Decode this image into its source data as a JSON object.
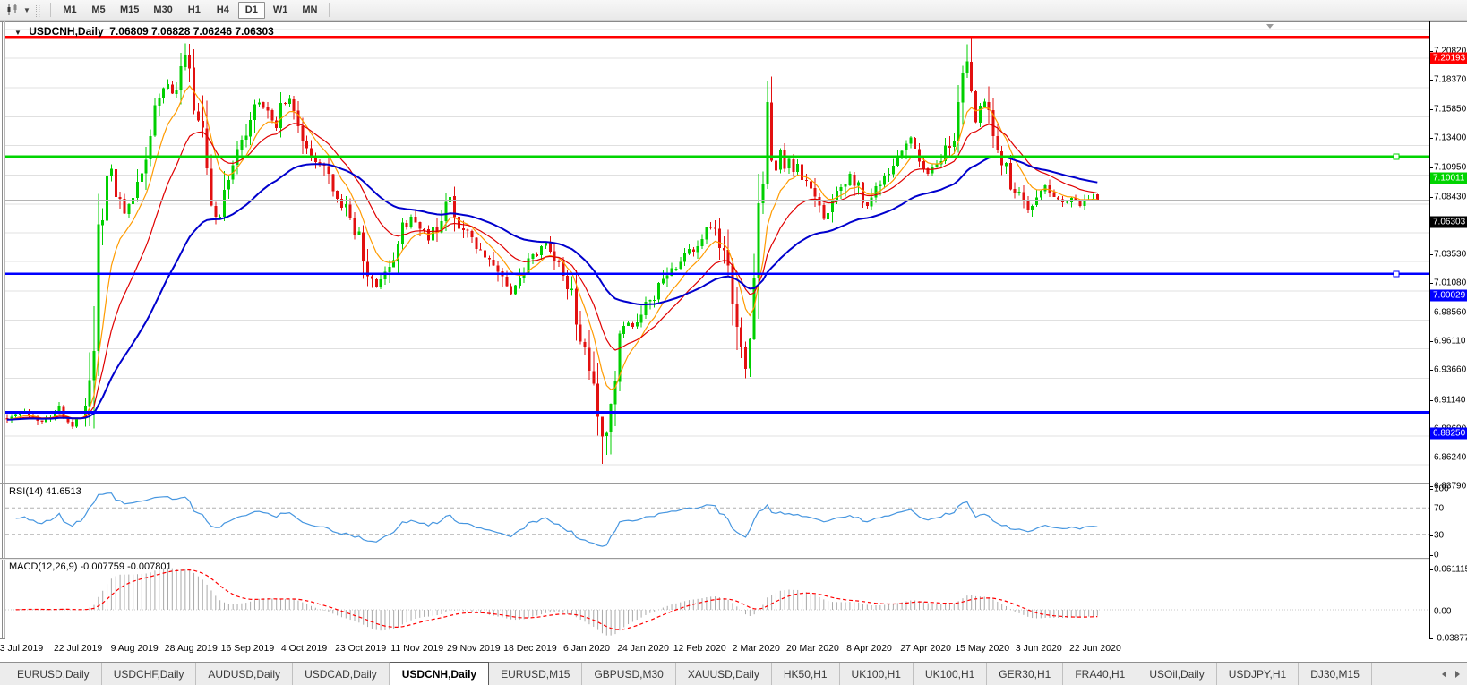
{
  "toolbar": {
    "chart_tool_icon": "candlestick-cursor",
    "dropdown_caret": "▼",
    "timeframes": [
      {
        "label": "M1",
        "active": false
      },
      {
        "label": "M5",
        "active": false
      },
      {
        "label": "M15",
        "active": false
      },
      {
        "label": "M30",
        "active": false
      },
      {
        "label": "H1",
        "active": false
      },
      {
        "label": "H4",
        "active": false
      },
      {
        "label": "D1",
        "active": true
      },
      {
        "label": "W1",
        "active": false
      },
      {
        "label": "MN",
        "active": false
      }
    ]
  },
  "chart": {
    "title_symbol": "USDCNH,Daily",
    "title_ohlc": "7.06809 7.06828 7.06246 7.06303",
    "collapse_caret": "▼",
    "price_axis_ticks": [
      "7.20820",
      "7.18370",
      "7.15850",
      "7.13400",
      "7.10950",
      "7.08430",
      "7.05980",
      "7.03530",
      "7.01080",
      "6.98560",
      "6.96110",
      "6.93660",
      "6.91140",
      "6.88690",
      "6.86240",
      "6.83790"
    ],
    "current_price": {
      "label": "7.06303",
      "price": 7.06303,
      "badge_color": "#000000",
      "line_color": "#b4b4b4"
    },
    "levels": [
      {
        "label": "7.20193",
        "price": 7.20193,
        "color": "#ff0000",
        "width": 2.5,
        "handle": false
      },
      {
        "label": "7.10011",
        "price": 7.10011,
        "color": "#00d400",
        "width": 3,
        "handle": true
      },
      {
        "label": "7.00029",
        "price": 7.00029,
        "color": "#0000ff",
        "width": 2.5,
        "handle": true
      },
      {
        "label": "6.88250",
        "price": 6.8825,
        "color": "#0000ff",
        "width": 3,
        "handle": false
      }
    ],
    "date_labels": [
      "3 Jul 2019",
      "22 Jul 2019",
      "9 Aug 2019",
      "28 Aug 2019",
      "16 Sep 2019",
      "4 Oct 2019",
      "23 Oct 2019",
      "11 Nov 2019",
      "29 Nov 2019",
      "18 Dec 2019",
      "6 Jan 2020",
      "24 Jan 2020",
      "12 Feb 2020",
      "2 Mar 2020",
      "20 Mar 2020",
      "8 Apr 2020",
      "27 Apr 2020",
      "15 May 2020",
      "3 Jun 2020",
      "22 Jun 2020"
    ]
  },
  "rsi": {
    "label": "RSI(14)",
    "value": "41.6513",
    "ticks": [
      {
        "label": "100",
        "v": 100
      },
      {
        "label": "70",
        "v": 70
      },
      {
        "label": "30",
        "v": 30
      },
      {
        "label": "0",
        "v": 0
      }
    ],
    "levels": [
      70,
      30
    ],
    "line_color": "#4696e0",
    "level_color": "#b0b0b0"
  },
  "macd": {
    "label": "MACD(12,26,9)",
    "values": "-0.007759 -0.007801",
    "ticks": [
      {
        "label": "0.061115",
        "v": 0.061115
      },
      {
        "label": "0.00",
        "v": 0
      },
      {
        "label": "-0.03877",
        "v": -0.03877
      }
    ],
    "histogram_color": "#a9a9a9",
    "signal_color": "#ff0000",
    "params": {
      "fast": 12,
      "slow": 26,
      "signal": 9
    }
  },
  "tabs": [
    {
      "label": "EURUSD,Daily",
      "active": false
    },
    {
      "label": "USDCHF,Daily",
      "active": false
    },
    {
      "label": "AUDUSD,Daily",
      "active": false
    },
    {
      "label": "USDCAD,Daily",
      "active": false
    },
    {
      "label": "USDCNH,Daily",
      "active": true
    },
    {
      "label": "EURUSD,M15",
      "active": false
    },
    {
      "label": "GBPUSD,M30",
      "active": false
    },
    {
      "label": "XAUUSD,Daily",
      "active": false
    },
    {
      "label": "HK50,H1",
      "active": false
    },
    {
      "label": "UK100,H1",
      "active": false
    },
    {
      "label": "UK100,H1",
      "active": false
    },
    {
      "label": "GER30,H1",
      "active": false
    },
    {
      "label": "FRA40,H1",
      "active": false
    },
    {
      "label": "USOil,Daily",
      "active": false
    },
    {
      "label": "USDJPY,H1",
      "active": false
    },
    {
      "label": "DJ30,M15",
      "active": false
    }
  ],
  "chart_data": {
    "type": "candlestick",
    "symbol": "USDCNH",
    "timeframe": "Daily",
    "open": 7.06809,
    "high": 7.06828,
    "low": 7.06246,
    "close": 7.06303,
    "ylim": [
      6.825,
      7.213
    ],
    "num_candles": 252,
    "up_color": "#00cf00",
    "down_color": "#e21010",
    "ma_fast_color": "#ff9b00",
    "ma_mid_color": "#e00000",
    "ma_slow_color": "#0000cd",
    "ma_periods": {
      "fast": 8,
      "mid": 18,
      "slow": 45
    },
    "grid_color": "#e0e0e0",
    "extremes": {
      "aug_high_idx": 41,
      "aug_high": 7.1962,
      "jan_low_idx": 137,
      "jan_low": 6.8385,
      "mar_high_idx": 175,
      "mar_high": 7.1648,
      "may_high_idx": 221,
      "may_high": 7.1958
    },
    "price_path": [
      [
        0,
        6.878
      ],
      [
        4,
        6.883
      ],
      [
        8,
        6.876
      ],
      [
        12,
        6.886
      ],
      [
        15,
        6.872
      ],
      [
        17,
        6.88
      ],
      [
        19,
        6.896
      ],
      [
        20,
        6.948
      ],
      [
        21,
        7.012
      ],
      [
        22,
        7.052
      ],
      [
        24,
        7.092
      ],
      [
        25,
        7.075
      ],
      [
        27,
        7.052
      ],
      [
        29,
        7.062
      ],
      [
        31,
        7.088
      ],
      [
        33,
        7.12
      ],
      [
        35,
        7.15
      ],
      [
        37,
        7.163
      ],
      [
        38,
        7.152
      ],
      [
        40,
        7.17
      ],
      [
        41,
        7.188
      ],
      [
        42,
        7.17
      ],
      [
        43,
        7.15
      ],
      [
        45,
        7.12
      ],
      [
        46,
        7.088
      ],
      [
        47,
        7.06
      ],
      [
        49,
        7.044
      ],
      [
        51,
        7.082
      ],
      [
        53,
        7.102
      ],
      [
        55,
        7.118
      ],
      [
        57,
        7.138
      ],
      [
        58,
        7.148
      ],
      [
        60,
        7.135
      ],
      [
        62,
        7.128
      ],
      [
        64,
        7.148
      ],
      [
        65,
        7.153
      ],
      [
        67,
        7.132
      ],
      [
        69,
        7.11
      ],
      [
        71,
        7.098
      ],
      [
        73,
        7.092
      ],
      [
        75,
        7.072
      ],
      [
        77,
        7.062
      ],
      [
        79,
        7.048
      ],
      [
        81,
        7.03
      ],
      [
        83,
        7.0
      ],
      [
        85,
        6.988
      ],
      [
        87,
        6.999
      ],
      [
        89,
        7.018
      ],
      [
        91,
        7.038
      ],
      [
        93,
        7.048
      ],
      [
        95,
        7.038
      ],
      [
        97,
        7.03
      ],
      [
        99,
        7.042
      ],
      [
        101,
        7.06
      ],
      [
        102,
        7.068
      ],
      [
        103,
        7.05
      ],
      [
        105,
        7.038
      ],
      [
        107,
        7.03
      ],
      [
        109,
        7.022
      ],
      [
        111,
        7.012
      ],
      [
        113,
        7.0
      ],
      [
        115,
        6.985
      ],
      [
        116,
        6.98
      ],
      [
        118,
        6.996
      ],
      [
        120,
        7.008
      ],
      [
        122,
        7.018
      ],
      [
        124,
        7.026
      ],
      [
        126,
        7.016
      ],
      [
        128,
        6.999
      ],
      [
        130,
        6.978
      ],
      [
        131,
        6.956
      ],
      [
        132,
        6.944
      ],
      [
        133,
        6.93
      ],
      [
        134,
        6.916
      ],
      [
        135,
        6.898
      ],
      [
        136,
        6.878
      ],
      [
        137,
        6.858
      ],
      [
        138,
        6.87
      ],
      [
        139,
        6.892
      ],
      [
        140,
        6.915
      ],
      [
        141,
        6.938
      ],
      [
        142,
        6.952
      ],
      [
        143,
        6.962
      ],
      [
        144,
        6.955
      ],
      [
        145,
        6.962
      ],
      [
        146,
        6.968
      ],
      [
        148,
        6.978
      ],
      [
        150,
        6.988
      ],
      [
        152,
        6.998
      ],
      [
        154,
        7.008
      ],
      [
        156,
        7.016
      ],
      [
        158,
        7.024
      ],
      [
        160,
        7.032
      ],
      [
        162,
        7.04
      ],
      [
        164,
        7.028
      ],
      [
        165,
        7.014
      ],
      [
        166,
        6.996
      ],
      [
        167,
        6.975
      ],
      [
        168,
        6.95
      ],
      [
        169,
        6.93
      ],
      [
        170,
        6.916
      ],
      [
        171,
        6.945
      ],
      [
        172,
        6.99
      ],
      [
        173,
        7.045
      ],
      [
        174,
        7.098
      ],
      [
        175,
        7.145
      ],
      [
        176,
        7.115
      ],
      [
        177,
        7.088
      ],
      [
        178,
        7.106
      ],
      [
        179,
        7.092
      ],
      [
        180,
        7.1
      ],
      [
        181,
        7.085
      ],
      [
        182,
        7.092
      ],
      [
        184,
        7.075
      ],
      [
        186,
        7.06
      ],
      [
        188,
        7.048
      ],
      [
        190,
        7.06
      ],
      [
        192,
        7.075
      ],
      [
        194,
        7.088
      ],
      [
        196,
        7.072
      ],
      [
        198,
        7.058
      ],
      [
        200,
        7.07
      ],
      [
        202,
        7.082
      ],
      [
        204,
        7.093
      ],
      [
        206,
        7.1
      ],
      [
        208,
        7.115
      ],
      [
        210,
        7.095
      ],
      [
        212,
        7.085
      ],
      [
        214,
        7.095
      ],
      [
        216,
        7.105
      ],
      [
        218,
        7.118
      ],
      [
        219,
        7.135
      ],
      [
        220,
        7.158
      ],
      [
        221,
        7.185
      ],
      [
        222,
        7.152
      ],
      [
        223,
        7.13
      ],
      [
        224,
        7.14
      ],
      [
        225,
        7.146
      ],
      [
        226,
        7.132
      ],
      [
        227,
        7.12
      ],
      [
        229,
        7.098
      ],
      [
        231,
        7.076
      ],
      [
        233,
        7.066
      ],
      [
        235,
        7.056
      ],
      [
        237,
        7.067
      ],
      [
        239,
        7.078
      ],
      [
        241,
        7.07
      ],
      [
        243,
        7.063
      ],
      [
        245,
        7.068
      ],
      [
        247,
        7.059
      ],
      [
        249,
        7.066
      ],
      [
        251,
        7.063
      ]
    ]
  }
}
